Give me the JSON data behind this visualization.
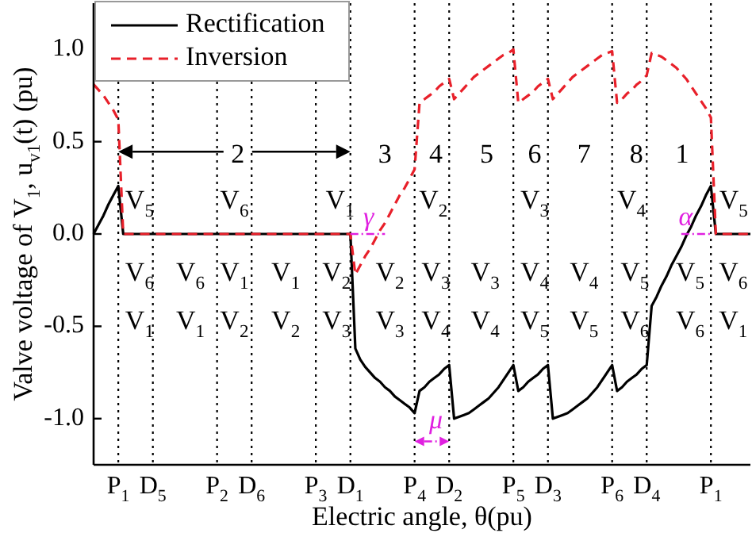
{
  "chart_data": {
    "type": "line",
    "xlabel": "Electric angle, θ(pu)",
    "ylabel": "Valve voltage of V$_{1}$, u$_{v1}$(t) (pu)",
    "categories": [
      null,
      null,
      null,
      null,
      null,
      "P$_{1}$",
      null,
      null,
      null,
      null,
      null,
      null,
      "D$_{5}$",
      null,
      null,
      null,
      null,
      null,
      null,
      null,
      null,
      null,
      null,
      null,
      null,
      "P$_{2}$",
      null,
      null,
      null,
      null,
      null,
      null,
      "D$_{6}$",
      null,
      null,
      null,
      null,
      null,
      null,
      null,
      null,
      null,
      null,
      null,
      null,
      "P$_{3}$",
      null,
      null,
      null,
      null,
      null,
      null,
      "D$_{1}$",
      null,
      null,
      null,
      null,
      null,
      null,
      null,
      null,
      null,
      null,
      null,
      null,
      "P$_{4}$",
      null,
      null,
      null,
      null,
      null,
      null,
      "D$_{2}$",
      null,
      null,
      null,
      null,
      null,
      null,
      null,
      null,
      null,
      null,
      null,
      null,
      "P$_{5}$",
      null,
      null,
      null,
      null,
      null,
      null,
      "D$_{3}$",
      null,
      null,
      null,
      null,
      null,
      null,
      null,
      null,
      null,
      null,
      null,
      null,
      "P$_{6}$",
      null,
      null,
      null,
      null,
      null,
      null,
      "D$_{4}$",
      null,
      null,
      null,
      null,
      null,
      null,
      null,
      null,
      null,
      null,
      null,
      null,
      "P$_{1}$",
      null,
      null,
      null,
      null,
      null,
      null,
      null,
      null
    ],
    "ylim": [
      -1.25,
      1.25
    ],
    "yticks": [
      {
        "value": -1,
        "label": "-1.0"
      },
      {
        "value": -0.5,
        "label": "-0.5"
      },
      {
        "value": 0,
        "label": "0.0"
      },
      {
        "value": 0.5,
        "label": "0.5"
      },
      {
        "value": 1,
        "label": "1.0"
      }
    ],
    "grid": "x",
    "series": [
      {
        "name": "Rectification",
        "color": "#000000",
        "line_style": "solid",
        "values": [
          0,
          0.05,
          0.1,
          0.16,
          0.21,
          0.26,
          0,
          0,
          0,
          0,
          0,
          0,
          0,
          0,
          0,
          0,
          0,
          0,
          0,
          0,
          0,
          0,
          0,
          0,
          0,
          0,
          0,
          0,
          0,
          0,
          0,
          0,
          0,
          0,
          0,
          0,
          0,
          0,
          0,
          0,
          0,
          0,
          0,
          0,
          0,
          0,
          0,
          0,
          0,
          0,
          0,
          0,
          0,
          -0.62,
          -0.68,
          -0.72,
          -0.75,
          -0.78,
          -0.8,
          -0.83,
          -0.85,
          -0.88,
          -0.9,
          -0.92,
          -0.94,
          -0.97,
          -0.85,
          -0.83,
          -0.8,
          -0.78,
          -0.76,
          -0.73,
          -0.71,
          -1,
          -0.99,
          -0.98,
          -0.97,
          -0.95,
          -0.93,
          -0.91,
          -0.89,
          -0.86,
          -0.83,
          -0.79,
          -0.75,
          -0.71,
          -0.85,
          -0.83,
          -0.8,
          -0.78,
          -0.76,
          -0.73,
          -0.71,
          -1,
          -0.99,
          -0.98,
          -0.97,
          -0.95,
          -0.93,
          -0.91,
          -0.89,
          -0.86,
          -0.83,
          -0.79,
          -0.75,
          -0.71,
          -0.85,
          -0.83,
          -0.8,
          -0.78,
          -0.76,
          -0.73,
          -0.71,
          -0.39,
          -0.34,
          -0.28,
          -0.23,
          -0.17,
          -0.12,
          -0.07,
          -0.01,
          0.04,
          0.1,
          0.15,
          0.21,
          0.26,
          0,
          0,
          0,
          0,
          0,
          0,
          0,
          0
        ]
      },
      {
        "name": "Inversion",
        "color": "#e8202a",
        "line_style": "dashed",
        "values": [
          0.81,
          0.78,
          0.75,
          0.71,
          0.67,
          0.62,
          0,
          0,
          0,
          0,
          0,
          0,
          0,
          0,
          0,
          0,
          0,
          0,
          0,
          0,
          0,
          0,
          0,
          0,
          0,
          0,
          0,
          0,
          0,
          0,
          0,
          0,
          0,
          0,
          0,
          0,
          0,
          0,
          0,
          0,
          0,
          0,
          0,
          0,
          0,
          0,
          0,
          0,
          0,
          0,
          0,
          0,
          0,
          -0.22,
          -0.17,
          -0.12,
          -0.08,
          -0.03,
          0.02,
          0.06,
          0.11,
          0.16,
          0.21,
          0.25,
          0.3,
          0.35,
          0.71,
          0.73,
          0.75,
          0.77,
          0.8,
          0.82,
          0.84,
          0.73,
          0.76,
          0.79,
          0.82,
          0.85,
          0.87,
          0.89,
          0.91,
          0.93,
          0.95,
          0.97,
          0.98,
          1,
          0.71,
          0.73,
          0.75,
          0.77,
          0.8,
          0.82,
          0.84,
          0.73,
          0.76,
          0.79,
          0.82,
          0.85,
          0.87,
          0.89,
          0.91,
          0.93,
          0.95,
          0.97,
          0.98,
          0.99,
          0.71,
          0.73,
          0.76,
          0.78,
          0.81,
          0.83,
          0.86,
          0.98,
          0.97,
          0.96,
          0.94,
          0.92,
          0.9,
          0.87,
          0.84,
          0.8,
          0.76,
          0.72,
          0.68,
          0.63,
          0,
          0,
          0,
          0,
          0,
          0,
          0,
          0
        ]
      }
    ],
    "legend": "top left",
    "annotations": [
      "2",
      "3",
      "4",
      "5",
      "6",
      "7",
      "8",
      "1",
      "V$_{5}$",
      "V$_{6}$",
      "V$_{1}$",
      "V$_{2}$",
      "V$_{3}$",
      "V$_{4}$",
      "V$_{5}$",
      "V$_{6}$",
      "V$_{6}$",
      "V$_{1}$",
      "V$_{1}$",
      "V$_{2}$",
      "V$_{2}$",
      "V$_{3}$",
      "V$_{3}$",
      "V$_{4}$",
      "V$_{4}$",
      "V$_{5}$",
      "V$_{5}$",
      "V$_{6}$",
      "V$_{1}$",
      "V$_{1}$",
      "V$_{2}$",
      "V$_{2}$",
      "V$_{3}$",
      "V$_{3}$",
      "V$_{4}$",
      "V$_{4}$",
      "V$_{5}$",
      "V$_{5}$",
      "V$_{6}$",
      "V$_{6}$",
      "V$_{1}$",
      "γ",
      "α",
      "μ"
    ]
  }
}
